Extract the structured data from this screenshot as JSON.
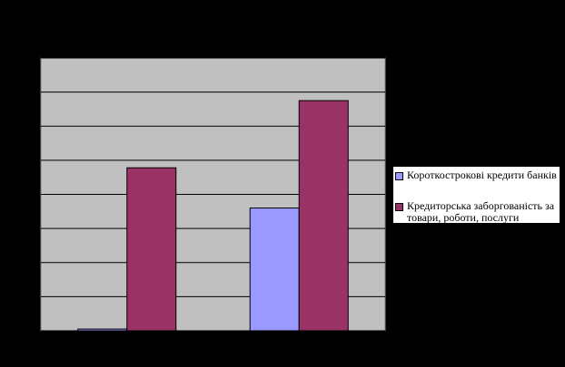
{
  "chart_data": {
    "type": "bar",
    "categories": [
      "",
      ""
    ],
    "ylim": [
      0,
      8
    ],
    "grid": true,
    "legend_position": "right",
    "series": [
      {
        "name": "Короткострокові кредити банків",
        "values": [
          0.05,
          3.6
        ],
        "color": "#9999ff"
      },
      {
        "name": "Кредиторська заборгованість за товари, роботи, послуги",
        "values": [
          4.78,
          6.75
        ],
        "color": "#993366"
      }
    ],
    "plot_background": "#c0c0c0"
  },
  "legend": {
    "entry_1": "Короткострокові кредити банків",
    "entry_2_line_1": "Кредиторська заборгованість за",
    "entry_2_line_2": "товари, роботи, послуги"
  }
}
